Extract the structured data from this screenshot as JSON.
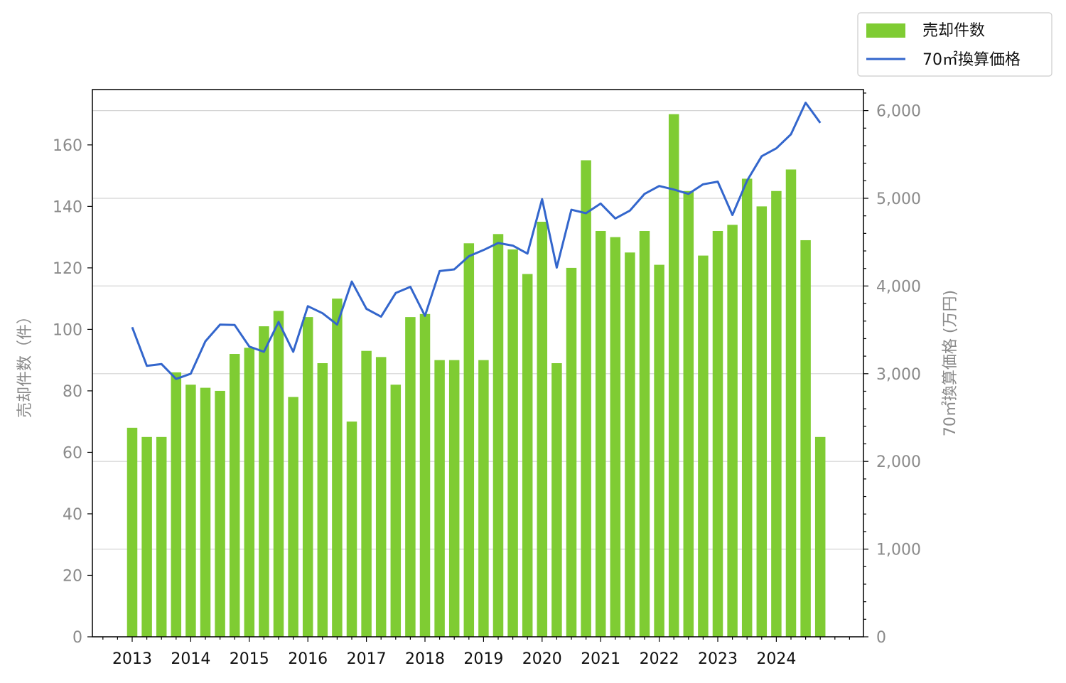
{
  "chart_data": {
    "type": "bar",
    "legend_position": "top-right, outside plot",
    "grid": "horizontal lines on right axis",
    "y_left": {
      "label": "売却件数（件）",
      "ylim": [
        0,
        178
      ],
      "ticks": [
        "0",
        "20",
        "40",
        "60",
        "80",
        "100",
        "120",
        "140",
        "160"
      ]
    },
    "y_right": {
      "label": "70㎡換算価格 (万円)",
      "ylim": [
        0,
        6240
      ],
      "ticks": [
        "0",
        "1,000",
        "2,000",
        "3,000",
        "4,000",
        "5,000",
        "6,000"
      ]
    },
    "x_tick_labels": [
      "2013",
      "2014",
      "2015",
      "2016",
      "2017",
      "2018",
      "2019",
      "2020",
      "2021",
      "2022",
      "2023",
      "2024"
    ],
    "x_start": "2013 Q1",
    "series": [
      {
        "name": "売却件数",
        "type": "bar",
        "axis": "left",
        "color": "#7fcc33",
        "values": [
          68,
          65,
          65,
          86,
          82,
          81,
          80,
          92,
          94,
          101,
          106,
          78,
          104,
          89,
          110,
          70,
          93,
          91,
          82,
          104,
          105,
          90,
          90,
          128,
          90,
          131,
          126,
          118,
          135,
          89,
          120,
          155,
          132,
          130,
          125,
          132,
          121,
          170,
          145,
          124,
          132,
          134,
          149,
          140,
          145,
          152,
          129,
          65
        ]
      },
      {
        "name": "70㎡換算価格",
        "type": "line",
        "axis": "right",
        "color": "#3366cc",
        "values": [
          3530,
          3090,
          3110,
          2940,
          3000,
          3370,
          3560,
          3555,
          3310,
          3250,
          3590,
          3250,
          3770,
          3690,
          3560,
          4050,
          3740,
          3650,
          3920,
          3990,
          3660,
          4170,
          4190,
          4340,
          4410,
          4490,
          4460,
          4370,
          4990,
          4210,
          4870,
          4830,
          4940,
          4770,
          4860,
          5050,
          5140,
          5100,
          5050,
          5160,
          5190,
          4810,
          5200,
          5480,
          5570,
          5730,
          6090,
          5860
        ]
      }
    ]
  }
}
